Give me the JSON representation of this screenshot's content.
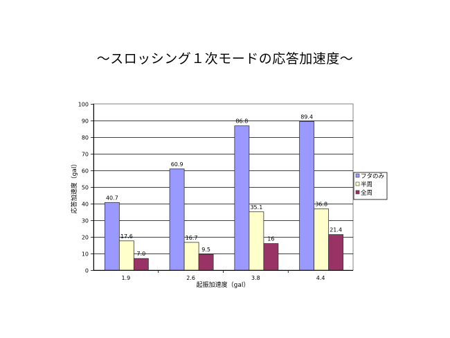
{
  "title": "～スロッシング１次モードの応答加速度～",
  "chart_data": {
    "type": "bar",
    "title": "～スロッシング１次モードの応答加速度～",
    "xlabel": "起振加速度（gal）",
    "ylabel": "応答加速度（gal）",
    "categories": [
      "1.9",
      "2.6",
      "3.8",
      "4.4"
    ],
    "series": [
      {
        "name": "フタのみ",
        "color": "#9999ff",
        "values": [
          40.7,
          60.9,
          86.8,
          89.4
        ],
        "labels": [
          "40.7",
          "60.9",
          "86.8",
          "89.4"
        ]
      },
      {
        "name": "半周",
        "color": "#ffffcc",
        "values": [
          17.6,
          16.7,
          35.1,
          36.8
        ],
        "labels": [
          "17.6",
          "16.7",
          "35.1",
          "36.8"
        ]
      },
      {
        "name": "全周",
        "color": "#993366",
        "values": [
          7.0,
          9.5,
          16,
          21.4
        ],
        "labels": [
          "7.0",
          "9.5",
          "16",
          "21.4"
        ]
      }
    ],
    "ylim": [
      0,
      100
    ],
    "yticks": [
      0,
      10,
      20,
      30,
      40,
      50,
      60,
      70,
      80,
      90,
      100
    ],
    "grid": true,
    "legend_position": "right"
  }
}
